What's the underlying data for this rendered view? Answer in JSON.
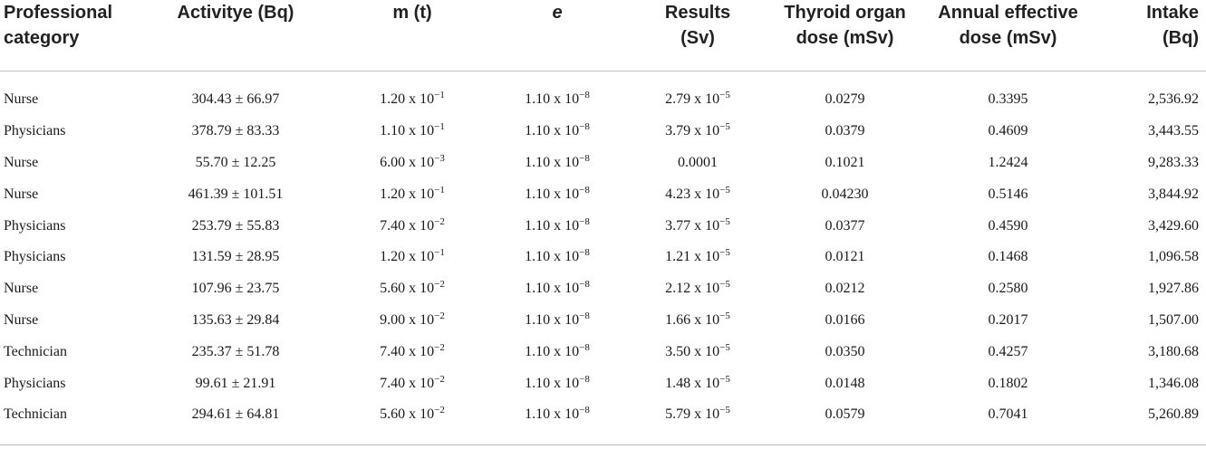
{
  "headers": [
    [
      "Professional",
      "category"
    ],
    [
      "Activitye (Bq)",
      ""
    ],
    [
      "m (t)",
      ""
    ],
    [
      "e",
      ""
    ],
    [
      "Results",
      "(Sv)"
    ],
    [
      "Thyroid organ",
      "dose (mSv)"
    ],
    [
      "Annual effective",
      "dose (mSv)"
    ],
    [
      "Intake",
      "(Bq)"
    ]
  ],
  "rows": [
    {
      "category": "Nurse",
      "activity": "304.43 ± 66.97",
      "m_base": "1.20 x 10",
      "m_exp": "−1",
      "e_base": "1.10 x 10",
      "e_exp": "−8",
      "res_base": "2.79 x 10",
      "res_exp": "−5",
      "thyroid": "0.0279",
      "annual": "0.3395",
      "intake": "2,536.92"
    },
    {
      "category": "Physicians",
      "activity": "378.79 ± 83.33",
      "m_base": "1.10 x 10",
      "m_exp": "−1",
      "e_base": "1.10 x 10",
      "e_exp": "−8",
      "res_base": "3.79 x 10",
      "res_exp": "−5",
      "thyroid": "0.0379",
      "annual": "0.4609",
      "intake": "3,443.55"
    },
    {
      "category": "Nurse",
      "activity": "55.70 ± 12.25",
      "m_base": "6.00 x 10",
      "m_exp": "−3",
      "e_base": "1.10 x 10",
      "e_exp": "−8",
      "res_base": "0.0001",
      "res_exp": "",
      "thyroid": "0.1021",
      "annual": "1.2424",
      "intake": "9,283.33"
    },
    {
      "category": "Nurse",
      "activity": "461.39 ± 101.51",
      "m_base": "1.20 x 10",
      "m_exp": "−1",
      "e_base": "1.10 x 10",
      "e_exp": "−8",
      "res_base": "4.23 x 10",
      "res_exp": "−5",
      "thyroid": "0.04230",
      "annual": "0.5146",
      "intake": "3,844.92"
    },
    {
      "category": "Physicians",
      "activity": "253.79 ± 55.83",
      "m_base": "7.40 x 10",
      "m_exp": "−2",
      "e_base": "1.10 x 10",
      "e_exp": "−8",
      "res_base": "3.77 x 10",
      "res_exp": "−5",
      "thyroid": "0.0377",
      "annual": "0.4590",
      "intake": "3,429.60"
    },
    {
      "category": "Physicians",
      "activity": "131.59 ± 28.95",
      "m_base": "1.20 x 10",
      "m_exp": "−1",
      "e_base": "1.10 x 10",
      "e_exp": "−8",
      "res_base": "1.21 x 10",
      "res_exp": "−5",
      "thyroid": "0.0121",
      "annual": "0.1468",
      "intake": "1,096.58"
    },
    {
      "category": "Nurse",
      "activity": "107.96 ± 23.75",
      "m_base": "5.60 x 10",
      "m_exp": "−2",
      "e_base": "1.10 x 10",
      "e_exp": "−8",
      "res_base": "2.12 x 10",
      "res_exp": "−5",
      "thyroid": "0.0212",
      "annual": "0.2580",
      "intake": "1,927.86"
    },
    {
      "category": "Nurse",
      "activity": "135.63 ± 29.84",
      "m_base": "9.00 x 10",
      "m_exp": "−2",
      "e_base": "1.10 x 10",
      "e_exp": "−8",
      "res_base": "1.66 x 10",
      "res_exp": "−5",
      "thyroid": "0.0166",
      "annual": "0.2017",
      "intake": "1,507.00"
    },
    {
      "category": "Technician",
      "activity": "235.37 ± 51.78",
      "m_base": "7.40 x 10",
      "m_exp": "−2",
      "e_base": "1.10 x 10",
      "e_exp": "−8",
      "res_base": "3.50 x 10",
      "res_exp": "−5",
      "thyroid": "0.0350",
      "annual": "0.4257",
      "intake": "3,180.68"
    },
    {
      "category": "Physicians",
      "activity": "99.61 ± 21.91",
      "m_base": "7.40 x 10",
      "m_exp": "−2",
      "e_base": "1.10 x 10",
      "e_exp": "−8",
      "res_base": "1.48 x 10",
      "res_exp": "−5",
      "thyroid": "0.0148",
      "annual": "0.1802",
      "intake": "1,346.08"
    },
    {
      "category": "Technician",
      "activity": "294.61 ± 64.81",
      "m_base": "5.60 x 10",
      "m_exp": "−2",
      "e_base": "1.10 x 10",
      "e_exp": "−8",
      "res_base": "5.79 x 10",
      "res_exp": "−5",
      "thyroid": "0.0579",
      "annual": "0.7041",
      "intake": "5,260.89"
    }
  ]
}
